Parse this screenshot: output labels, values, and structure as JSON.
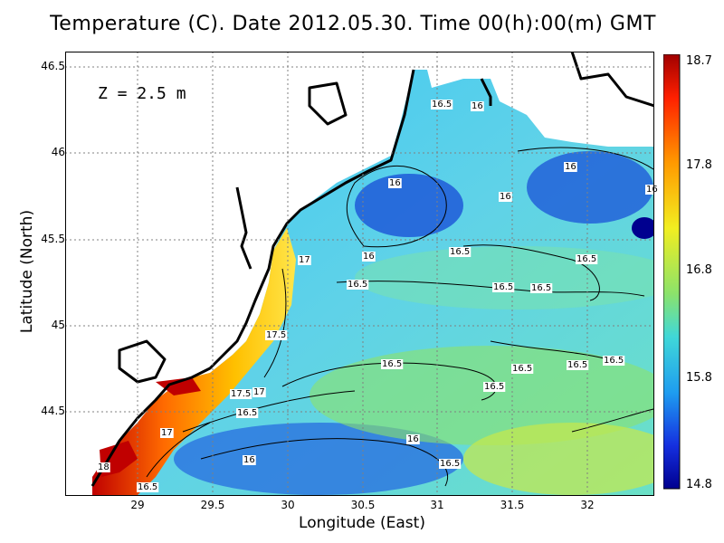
{
  "title": "Temperature (C). Date 2012.05.30. Time 00(h):00(m) GMT",
  "depth_label": "Z  =  2.5  m",
  "x_axis": {
    "label": "Longitude (East)",
    "ticks": [
      "29",
      "29.5",
      "30",
      "30.5",
      "31",
      "31.5",
      "32"
    ]
  },
  "y_axis": {
    "label": "Latitude (North)",
    "ticks": [
      "46.5",
      "46",
      "45.5",
      "45",
      "44.5"
    ]
  },
  "colorbar": {
    "ticks": [
      "18.7",
      "17.8",
      "16.8",
      "15.8",
      "14.8"
    ],
    "min": 14.8,
    "max": 18.7
  },
  "contour_labels": [
    "16.5",
    "16",
    "16",
    "16",
    "16",
    "16",
    "16.5",
    "16",
    "17",
    "16.5",
    "16.5",
    "16.5",
    "16.5",
    "16.5",
    "17.5",
    "16.5",
    "16.5",
    "16.5",
    "16.5",
    "17.5",
    "17",
    "16.5",
    "17",
    "16",
    "16.5",
    "18",
    "16.5",
    "16"
  ],
  "colors": {
    "cold": "#00008f",
    "warm": "#a00000",
    "mid": "#8ce36a",
    "land": "#ffffff",
    "coast": "#000000"
  }
}
